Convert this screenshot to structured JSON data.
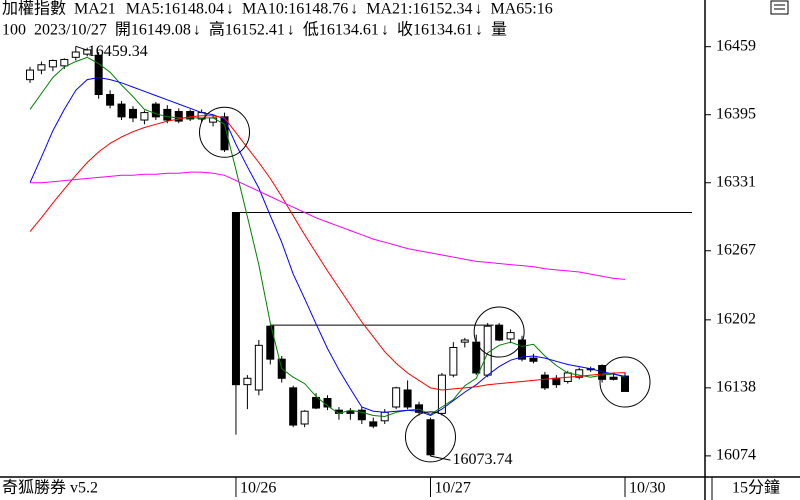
{
  "header": {
    "symbol": "加權指數",
    "study": "MA21",
    "ma": [
      {
        "text": "MA5:16148.04",
        "arrow": "↓"
      },
      {
        "text": "MA10:16148.76",
        "arrow": "↓"
      },
      {
        "text": "MA21:16152.34",
        "arrow": "↓"
      },
      {
        "text": "MA65:16"
      }
    ],
    "info": {
      "count": "100",
      "date": "2023/10/27",
      "quotes": [
        {
          "text": "開16149.08",
          "arrow": "↓"
        },
        {
          "text": "高16152.41",
          "arrow": "↓"
        },
        {
          "text": "低16134.61",
          "arrow": "↓"
        },
        {
          "text": "收16134.61",
          "arrow": "↓"
        }
      ],
      "volume": "量"
    }
  },
  "chart_data": {
    "type": "candlestick",
    "categories": [
      null,
      null,
      null,
      null,
      null,
      null,
      null,
      null,
      null,
      null,
      null,
      null,
      null,
      null,
      null,
      null,
      null,
      null,
      "10/26",
      null,
      null,
      null,
      null,
      null,
      null,
      null,
      null,
      null,
      null,
      null,
      null,
      null,
      null,
      null,
      null,
      "10/27",
      null,
      null,
      null,
      null,
      null,
      null,
      null,
      null,
      null,
      null,
      null,
      null,
      null,
      null,
      null,
      null,
      "10/30"
    ],
    "open": [
      16428,
      16437,
      16440,
      16441,
      16449,
      16452,
      16451,
      16414,
      16405,
      16400,
      16390,
      16405,
      16400,
      16398,
      16398,
      16391,
      16388,
      16393,
      16303,
      16141,
      16136,
      16196,
      16165,
      16138,
      16104,
      16129,
      16128,
      16117,
      16116,
      16117,
      16106,
      16107,
      16120,
      16136,
      16122,
      16108,
      16114,
      16150,
      16181,
      16181,
      16150,
      16197,
      16184,
      16183,
      16166,
      16150,
      16147,
      16144,
      16148,
      16155,
      16159,
      16148,
      16149.08
    ],
    "high": [
      16440,
      16445,
      16447,
      16448,
      16459.34,
      16458,
      16454,
      16418,
      16408,
      16403,
      16399,
      16407,
      16404,
      16401,
      16400,
      16400,
      16395,
      16397,
      16303,
      16150,
      16183,
      16197,
      16168,
      16140,
      16117,
      16133,
      16131,
      16120,
      16119,
      16120,
      16110,
      16118,
      16139,
      16145,
      16125,
      16110,
      16152,
      16181,
      16185,
      16188,
      16199,
      16199,
      16193,
      16187,
      16170,
      16153,
      16150,
      16154,
      16157,
      16158,
      16160,
      16152,
      16152.41
    ],
    "low": [
      16425,
      16433,
      16436,
      16438,
      16446,
      16450,
      16410,
      16401,
      16390,
      16388,
      16386,
      16390,
      16387,
      16387,
      16389,
      16388,
      16384,
      16360,
      16094,
      16118,
      16131,
      16160,
      16143,
      16101,
      16101,
      16118,
      16117,
      16108,
      16108,
      16104,
      16100,
      16104,
      16118,
      16118,
      16112,
      16073.74,
      16112,
      16148,
      16176,
      16150,
      16148,
      16182,
      16180,
      16163,
      16161,
      16136,
      16138,
      16142,
      16146,
      16153,
      16143,
      16145,
      16134.61
    ],
    "close": [
      16437,
      16442,
      16446,
      16447,
      16454,
      16456,
      16414,
      16404,
      16393,
      16392,
      16397,
      16393,
      16390,
      16389,
      16391,
      16397,
      16392,
      16362,
      16141,
      16147,
      16178,
      16165,
      16147,
      16103,
      16116,
      16119,
      16120,
      16114,
      16114,
      16108,
      16102,
      16115,
      16138,
      16120,
      16115,
      16075,
      16150,
      16176,
      16183,
      16152,
      16196,
      16183,
      16190,
      16165,
      16163,
      16138,
      16141,
      16152,
      16155,
      16156,
      16146,
      16146,
      16134.61
    ],
    "up_color": "#ffffff",
    "down_color": "#000000",
    "series": [
      {
        "color": "#008000",
        "values": [
          16400,
          16415,
          16430,
          16440,
          16445,
          16449,
          16443,
          16435,
          16423,
          16412,
          16400,
          16396,
          16393,
          16392,
          16392,
          16392,
          16392,
          16386,
          16343,
          16299,
          16254,
          16199,
          16156,
          16148,
          16142,
          16130,
          16121,
          16114,
          16117,
          16115,
          16112,
          16111,
          16115,
          16117,
          16118,
          16113,
          16120,
          16127,
          16140,
          16147,
          16171,
          16178,
          16181,
          16177,
          16179,
          16168,
          16159,
          16152,
          16150,
          16148,
          16150,
          16151,
          16148.04
        ]
      },
      {
        "color": "#0000ff",
        "values": [
          16331,
          16355,
          16380,
          16400,
          16418,
          16428,
          16430,
          16428,
          16425,
          16421,
          16417,
          16413,
          16409,
          16405,
          16401,
          16397,
          16395,
          16391,
          16367,
          16346,
          16326,
          16300,
          16275,
          16245,
          16222,
          16198,
          16175,
          16155,
          16137,
          16120,
          16116,
          16115,
          16116,
          16117,
          16116,
          16112,
          16118,
          16126,
          16134,
          16141,
          16150,
          16158,
          16164,
          16167,
          16168,
          16166,
          16163,
          16160,
          16158,
          16156,
          16153,
          16151,
          16148.76
        ]
      },
      {
        "color": "#ff0000",
        "values": [
          16285,
          16298,
          16312,
          16325,
          16338,
          16350,
          16360,
          16368,
          16374,
          16379,
          16383,
          16386,
          16389,
          16391,
          16393,
          16394,
          16394,
          16392,
          16378,
          16364,
          16350,
          16335,
          16318,
          16300,
          16282,
          16265,
          16248,
          16232,
          16216,
          16200,
          16186,
          16172,
          16161,
          16152,
          16145,
          16138,
          16136,
          16137,
          16138,
          16139,
          16141,
          16142,
          16143,
          16144,
          16145,
          16146,
          16147,
          16148,
          16149,
          16150,
          16151,
          16152,
          16152.34
        ]
      },
      {
        "color": "#ff00ff",
        "values": [
          16331,
          16331,
          16332,
          16333,
          16334,
          16335,
          16336,
          16337,
          16338,
          16338,
          16339,
          16339,
          16340,
          16340,
          16341,
          16341,
          16340,
          16338,
          16333,
          16328,
          16323,
          16318,
          16313,
          16308,
          16303,
          16298,
          16294,
          16290,
          16286,
          16282,
          16278,
          16275,
          16272,
          16269,
          16267,
          16265,
          16263,
          16261,
          16259,
          16257,
          16256,
          16255,
          16254,
          16253,
          16252,
          16250,
          16249,
          16248,
          16247,
          16245,
          16243,
          16241,
          16240
        ]
      }
    ],
    "hlines": [
      16303,
      16197
    ],
    "ylim": [
      16056,
      16486
    ],
    "yticks": [
      16074,
      16138,
      16202,
      16267,
      16331,
      16395,
      16459
    ]
  },
  "footer": {
    "app": "奇狐勝券 v5.2",
    "interval": "15分鐘"
  }
}
